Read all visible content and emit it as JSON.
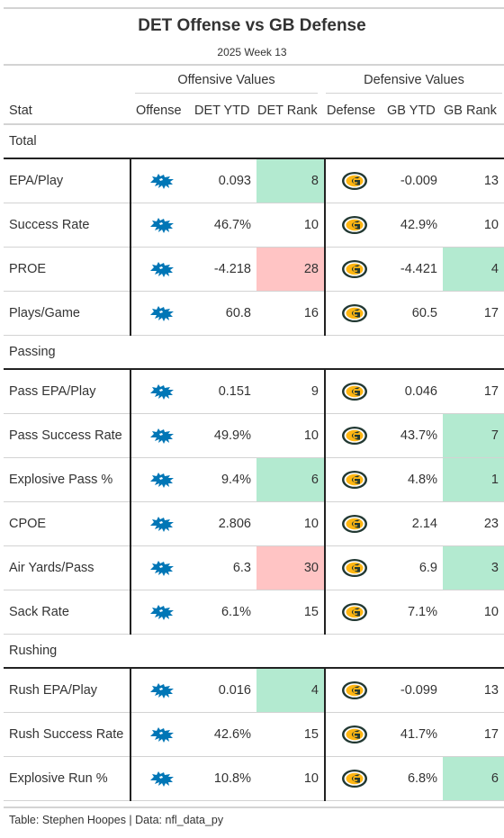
{
  "title": "DET Offense vs GB Defense",
  "subtitle": "2025 Week 13",
  "spanners": {
    "offense": "Offensive Values",
    "defense": "Defensive Values"
  },
  "columns": {
    "stat": "Stat",
    "offense": "Offense",
    "det_ytd": "DET YTD",
    "det_rank": "DET Rank",
    "defense": "Defense",
    "gb_ytd": "GB YTD",
    "gb_rank": "GB Rank"
  },
  "colors": {
    "good": "#b3ead0",
    "bad": "#ffc4c4",
    "lions_blue": "#0076B6",
    "packers_green": "#203731",
    "packers_gold": "#FFB612"
  },
  "icons": {
    "offense": "detroit-lions-logo-icon",
    "defense": "green-bay-packers-logo-icon"
  },
  "groups": [
    {
      "name": "Total",
      "rows": [
        {
          "stat": "EPA/Play",
          "det_ytd": "0.093",
          "det_rank": "8",
          "det_rank_tone": "good",
          "gb_ytd": "-0.009",
          "gb_rank": "13",
          "gb_rank_tone": ""
        },
        {
          "stat": "Success Rate",
          "det_ytd": "46.7%",
          "det_rank": "10",
          "det_rank_tone": "",
          "gb_ytd": "42.9%",
          "gb_rank": "10",
          "gb_rank_tone": ""
        },
        {
          "stat": "PROE",
          "det_ytd": "-4.218",
          "det_rank": "28",
          "det_rank_tone": "bad",
          "gb_ytd": "-4.421",
          "gb_rank": "4",
          "gb_rank_tone": "good"
        },
        {
          "stat": "Plays/Game",
          "det_ytd": "60.8",
          "det_rank": "16",
          "det_rank_tone": "",
          "gb_ytd": "60.5",
          "gb_rank": "17",
          "gb_rank_tone": ""
        }
      ]
    },
    {
      "name": "Passing",
      "rows": [
        {
          "stat": "Pass EPA/Play",
          "det_ytd": "0.151",
          "det_rank": "9",
          "det_rank_tone": "",
          "gb_ytd": "0.046",
          "gb_rank": "17",
          "gb_rank_tone": ""
        },
        {
          "stat": "Pass Success Rate",
          "det_ytd": "49.9%",
          "det_rank": "10",
          "det_rank_tone": "",
          "gb_ytd": "43.7%",
          "gb_rank": "7",
          "gb_rank_tone": "good"
        },
        {
          "stat": "Explosive Pass %",
          "det_ytd": "9.4%",
          "det_rank": "6",
          "det_rank_tone": "good",
          "gb_ytd": "4.8%",
          "gb_rank": "1",
          "gb_rank_tone": "good"
        },
        {
          "stat": "CPOE",
          "det_ytd": "2.806",
          "det_rank": "10",
          "det_rank_tone": "",
          "gb_ytd": "2.14",
          "gb_rank": "23",
          "gb_rank_tone": ""
        },
        {
          "stat": "Air Yards/Pass",
          "det_ytd": "6.3",
          "det_rank": "30",
          "det_rank_tone": "bad",
          "gb_ytd": "6.9",
          "gb_rank": "3",
          "gb_rank_tone": "good"
        },
        {
          "stat": "Sack Rate",
          "det_ytd": "6.1%",
          "det_rank": "15",
          "det_rank_tone": "",
          "gb_ytd": "7.1%",
          "gb_rank": "10",
          "gb_rank_tone": ""
        }
      ]
    },
    {
      "name": "Rushing",
      "rows": [
        {
          "stat": "Rush EPA/Play",
          "det_ytd": "0.016",
          "det_rank": "4",
          "det_rank_tone": "good",
          "gb_ytd": "-0.099",
          "gb_rank": "13",
          "gb_rank_tone": ""
        },
        {
          "stat": "Rush Success Rate",
          "det_ytd": "42.6%",
          "det_rank": "15",
          "det_rank_tone": "",
          "gb_ytd": "41.7%",
          "gb_rank": "17",
          "gb_rank_tone": ""
        },
        {
          "stat": "Explosive Run %",
          "det_ytd": "10.8%",
          "det_rank": "10",
          "det_rank_tone": "",
          "gb_ytd": "6.8%",
          "gb_rank": "6",
          "gb_rank_tone": "good"
        }
      ]
    }
  ],
  "footer": "Table: Stephen Hoopes | Data: nfl_data_py"
}
